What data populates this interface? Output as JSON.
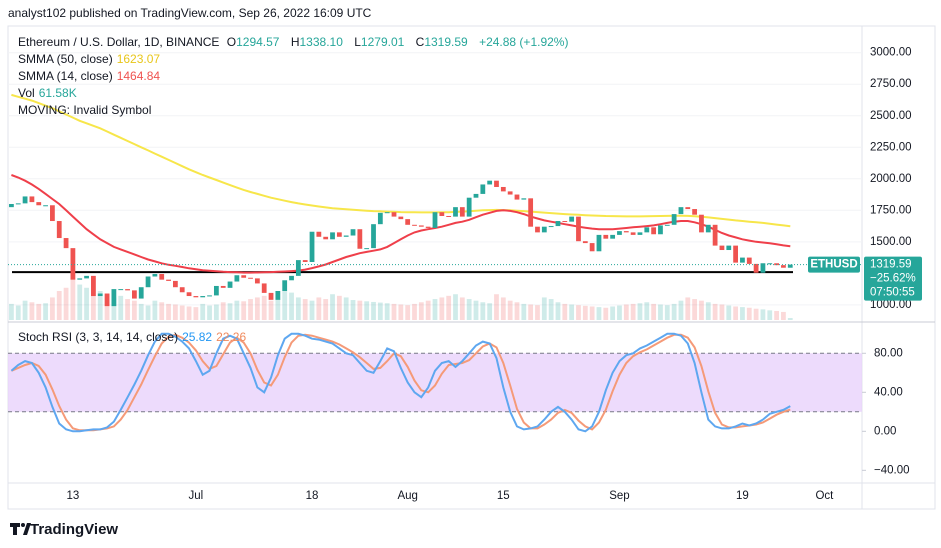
{
  "header": {
    "publisher": "analyst102 published on TradingView.com, Sep 26, 2022 16:09 UTC"
  },
  "footer": {
    "logo": "TradingView"
  },
  "chart_data": {
    "type": "candlestick",
    "symbol": "Ethereum / U.S. Dollar, 1D, BINANCE",
    "ohlc": [
      {
        "label": "O",
        "value": "1294.57"
      },
      {
        "label": "H",
        "value": "1338.10"
      },
      {
        "label": "L",
        "value": "1279.01"
      },
      {
        "label": "C",
        "value": "1319.59"
      }
    ],
    "change": "+24.88 (+1.92%)",
    "note": "MOVING: Invalid Symbol",
    "up_color": "#26a69a",
    "down_color": "#ef5350",
    "categories": [
      null,
      null,
      null,
      null,
      null,
      null,
      null,
      null,
      null,
      "13",
      null,
      null,
      null,
      null,
      null,
      null,
      null,
      null,
      null,
      null,
      null,
      null,
      null,
      null,
      null,
      null,
      null,
      "Jul",
      null,
      null,
      null,
      null,
      null,
      null,
      null,
      null,
      null,
      null,
      null,
      null,
      null,
      null,
      null,
      null,
      "18",
      null,
      null,
      null,
      null,
      null,
      null,
      null,
      null,
      null,
      null,
      null,
      null,
      null,
      "Aug",
      null,
      null,
      null,
      null,
      null,
      null,
      null,
      null,
      null,
      null,
      null,
      null,
      null,
      "15",
      null,
      null,
      null,
      null,
      null,
      null,
      null,
      null,
      null,
      null,
      null,
      null,
      null,
      null,
      null,
      null,
      "Sep",
      null,
      null,
      null,
      null,
      null,
      null,
      null,
      null,
      null,
      null,
      null,
      null,
      null,
      null,
      null,
      null,
      null,
      "19",
      null,
      null,
      null,
      null,
      null,
      null,
      null,
      null,
      null,
      null,
      null,
      "Oct",
      null,
      null,
      null,
      null,
      null
    ],
    "open": [
      1775,
      1800,
      1805,
      1860,
      1815,
      1790,
      1790,
      1665,
      1530,
      1450,
      1200,
      1210,
      1230,
      1070,
      1090,
      990,
      1125,
      1125,
      1115,
      1050,
      1140,
      1225,
      1245,
      1200,
      1190,
      1140,
      1100,
      1070,
      1060,
      1070,
      1075,
      1150,
      1135,
      1185,
      1235,
      1215,
      1210,
      1170,
      1095,
      1040,
      1110,
      1195,
      1230,
      1355,
      1340,
      1580,
      1540,
      1520,
      1575,
      1540,
      1550,
      1600,
      1445,
      1450,
      1640,
      1730,
      1735,
      1700,
      1680,
      1635,
      1630,
      1620,
      1610,
      1735,
      1705,
      1700,
      1775,
      1700,
      1850,
      1880,
      1955,
      1985,
      1935,
      1900,
      1875,
      1835,
      1845,
      1620,
      1575,
      1620,
      1625,
      1665,
      1660,
      1700,
      1505,
      1490,
      1425,
      1555,
      1525,
      1555,
      1585,
      1575,
      1555,
      1575,
      1615,
      1560,
      1630,
      1635,
      1720,
      1775,
      1760,
      1715,
      1575,
      1635,
      1470,
      1435,
      1470,
      1335,
      1375,
      1325,
      1255,
      1330,
      1330,
      1315,
      1294.57,
      null,
      null,
      null,
      null,
      null,
      null,
      null,
      null,
      null,
      null
    ],
    "close": [
      1800,
      1805,
      1860,
      1815,
      1790,
      1790,
      1665,
      1530,
      1450,
      1200,
      1210,
      1230,
      1070,
      1090,
      990,
      1125,
      1125,
      1115,
      1050,
      1140,
      1225,
      1245,
      1200,
      1190,
      1140,
      1100,
      1070,
      1060,
      1070,
      1075,
      1150,
      1135,
      1185,
      1235,
      1215,
      1210,
      1170,
      1095,
      1040,
      1110,
      1195,
      1230,
      1355,
      1340,
      1580,
      1540,
      1520,
      1575,
      1540,
      1550,
      1600,
      1445,
      1450,
      1640,
      1730,
      1735,
      1700,
      1680,
      1635,
      1630,
      1620,
      1610,
      1735,
      1705,
      1700,
      1775,
      1700,
      1850,
      1880,
      1955,
      1985,
      1935,
      1900,
      1875,
      1835,
      1845,
      1620,
      1575,
      1620,
      1625,
      1665,
      1660,
      1700,
      1505,
      1490,
      1425,
      1555,
      1525,
      1555,
      1585,
      1575,
      1555,
      1575,
      1615,
      1560,
      1630,
      1635,
      1720,
      1775,
      1760,
      1715,
      1575,
      1635,
      1470,
      1435,
      1470,
      1335,
      1375,
      1325,
      1255,
      1330,
      1330,
      1315,
      1294.57,
      1319.59,
      null,
      null,
      null,
      null,
      null,
      null,
      null,
      null,
      null,
      null
    ],
    "ylim": [
      880,
      3180
    ],
    "yticks": [
      {
        "value": 3000,
        "label": "3000.00"
      },
      {
        "value": 2750,
        "label": "2750.00"
      },
      {
        "value": 2500,
        "label": "2500.00"
      },
      {
        "value": 2250,
        "label": "2250.00"
      },
      {
        "value": 2000,
        "label": "2000.00"
      },
      {
        "value": 1750,
        "label": "1750.00"
      },
      {
        "value": 1500,
        "label": "1500.00"
      },
      {
        "value": 1000,
        "label": "1000.00"
      }
    ],
    "support_line": 1260,
    "last_price": {
      "symbol": "ETHUSD",
      "price": "1319.59",
      "change": "−25.62%",
      "countdown": "07:50:55"
    },
    "indicators": [
      {
        "name": "SMMA (50, close)",
        "last": "1623.07",
        "color": "#f7e64a",
        "values": [
          2665,
          2650,
          2635,
          2620,
          2600,
          2580,
          2560,
          2535,
          2510,
          2485,
          2460,
          2440,
          2420,
          2400,
          2375,
          2350,
          2325,
          2300,
          2275,
          2250,
          2225,
          2200,
          2175,
          2150,
          2125,
          2100,
          2075,
          2052,
          2030,
          2010,
          1990,
          1970,
          1950,
          1930,
          1912,
          1895,
          1880,
          1865,
          1850,
          1838,
          1826,
          1815,
          1805,
          1796,
          1788,
          1780,
          1773,
          1767,
          1762,
          1758,
          1754,
          1750,
          1747,
          1744,
          1742,
          1740,
          1738,
          1736,
          1735,
          1734,
          1733,
          1733,
          1733,
          1734,
          1735,
          1737,
          1740,
          1743,
          1746,
          1750,
          1752,
          1753,
          1752,
          1750,
          1747,
          1744,
          1740,
          1736,
          1732,
          1728,
          1724,
          1720,
          1717,
          1714,
          1711,
          1709,
          1707,
          1705,
          1704,
          1703,
          1702,
          1702,
          1702,
          1703,
          1704,
          1705,
          1706,
          1707,
          1707,
          1706,
          1703,
          1699,
          1694,
          1688,
          1682,
          1676,
          1670,
          1665,
          1660,
          1655,
          1650,
          1644,
          1637,
          1630,
          1623.07,
          null,
          null,
          null,
          null,
          null,
          null,
          null,
          null,
          null,
          null
        ]
      },
      {
        "name": "SMMA (14, close)",
        "last": "1464.84",
        "color": "#ef3f4a",
        "values": [
          2030,
          2010,
          1985,
          1955,
          1920,
          1880,
          1840,
          1800,
          1750,
          1700,
          1650,
          1600,
          1560,
          1520,
          1490,
          1460,
          1440,
          1420,
          1400,
          1380,
          1360,
          1345,
          1330,
          1318,
          1310,
          1300,
          1290,
          1282,
          1275,
          1270,
          1266,
          1262,
          1260,
          1258,
          1256,
          1256,
          1257,
          1258,
          1260,
          1262,
          1265,
          1268,
          1272,
          1280,
          1292,
          1305,
          1320,
          1340,
          1360,
          1380,
          1395,
          1410,
          1420,
          1430,
          1440,
          1460,
          1490,
          1520,
          1550,
          1575,
          1590,
          1600,
          1610,
          1620,
          1635,
          1650,
          1660,
          1675,
          1695,
          1715,
          1730,
          1745,
          1750,
          1745,
          1735,
          1720,
          1700,
          1685,
          1670,
          1660,
          1650,
          1640,
          1630,
          1620,
          1612,
          1605,
          1600,
          1600,
          1600,
          1605,
          1610,
          1615,
          1620,
          1625,
          1630,
          1640,
          1650,
          1660,
          1665,
          1665,
          1655,
          1640,
          1620,
          1595,
          1570,
          1550,
          1535,
          1520,
          1510,
          1500,
          1495,
          1488,
          1480,
          1472,
          1464.84,
          null,
          null,
          null,
          null,
          null,
          null,
          null,
          null,
          null,
          null
        ]
      }
    ],
    "volume": {
      "name": "Vol",
      "last": "61.58K",
      "ylim": [
        0,
        9000
      ],
      "values": [
        500,
        450,
        600,
        550,
        500,
        520,
        700,
        900,
        1000,
        1400,
        1100,
        1000,
        1300,
        900,
        800,
        700,
        750,
        650,
        600,
        500,
        450,
        600,
        550,
        500,
        480,
        450,
        420,
        400,
        500,
        450,
        480,
        550,
        520,
        600,
        580,
        650,
        700,
        750,
        600,
        650,
        900,
        850,
        700,
        650,
        600,
        700,
        650,
        800,
        750,
        700,
        620,
        600,
        580,
        560,
        540,
        520,
        500,
        480,
        460,
        500,
        550,
        600,
        650,
        700,
        750,
        800,
        700,
        650,
        600,
        550,
        520,
        800,
        700,
        600,
        550,
        500,
        480,
        460,
        700,
        650,
        550,
        500,
        480,
        460,
        440,
        420,
        400,
        380,
        420,
        450,
        480,
        500,
        520,
        550,
        500,
        480,
        460,
        500,
        600,
        700,
        650,
        600,
        550,
        500,
        480,
        450,
        420,
        400,
        380,
        350,
        330,
        300,
        280,
        250,
        61.58,
        null,
        null,
        null,
        null,
        null,
        null,
        null,
        null,
        null,
        null
      ]
    },
    "stoch_rsi": {
      "name": "Stoch RSI (3, 3, 14, 14, close)",
      "ylim": [
        -53,
        109
      ],
      "band": [
        20,
        80
      ],
      "band_color": "#e8d2fb",
      "yticks": [
        {
          "value": 80,
          "label": "80.00"
        },
        {
          "value": 40,
          "label": "40.00"
        },
        {
          "value": 0,
          "label": "0.00"
        },
        {
          "value": -40,
          "label": "−40.00"
        }
      ],
      "series": [
        {
          "last": "25.82",
          "color": "#5ea7f0",
          "values": [
            62,
            68,
            72,
            70,
            60,
            45,
            25,
            8,
            2,
            0,
            0,
            1,
            2,
            2,
            4,
            10,
            22,
            35,
            48,
            62,
            78,
            92,
            100,
            100,
            97,
            92,
            85,
            72,
            58,
            62,
            80,
            95,
            98,
            95,
            80,
            65,
            45,
            40,
            55,
            78,
            95,
            100,
            100,
            98,
            95,
            94,
            92,
            90,
            85,
            80,
            78,
            70,
            62,
            60,
            72,
            85,
            82,
            65,
            50,
            40,
            35,
            45,
            62,
            70,
            72,
            66,
            72,
            80,
            88,
            92,
            90,
            75,
            45,
            20,
            5,
            2,
            3,
            5,
            12,
            20,
            25,
            20,
            12,
            2,
            0,
            5,
            20,
            42,
            60,
            72,
            78,
            80,
            85,
            88,
            92,
            96,
            100,
            100,
            98,
            90,
            70,
            40,
            12,
            5,
            3,
            3,
            5,
            8,
            6,
            8,
            12,
            18,
            20,
            22,
            25.82,
            null,
            null,
            null,
            null,
            null,
            null,
            null,
            null,
            null,
            null
          ]
        },
        {
          "last": "22.26",
          "color": "#f59a78",
          "values": [
            62,
            65,
            68,
            70,
            67,
            58,
            43,
            26,
            12,
            3,
            1,
            1,
            1,
            2,
            3,
            5,
            12,
            22,
            35,
            48,
            63,
            77,
            90,
            97,
            99,
            96,
            91,
            83,
            72,
            64,
            67,
            79,
            91,
            96,
            91,
            80,
            63,
            50,
            47,
            58,
            76,
            91,
            98,
            99,
            98,
            96,
            94,
            92,
            89,
            85,
            81,
            76,
            70,
            64,
            65,
            72,
            80,
            77,
            66,
            52,
            42,
            40,
            47,
            59,
            68,
            69,
            70,
            73,
            80,
            87,
            90,
            86,
            70,
            47,
            23,
            9,
            3,
            3,
            7,
            12,
            19,
            22,
            19,
            11,
            5,
            2,
            9,
            22,
            41,
            58,
            70,
            77,
            81,
            84,
            88,
            92,
            96,
            99,
            99,
            96,
            86,
            67,
            41,
            19,
            7,
            4,
            4,
            5,
            6,
            7,
            9,
            13,
            17,
            20,
            22.26,
            null,
            null,
            null,
            null,
            null,
            null,
            null,
            null,
            null,
            null
          ]
        }
      ]
    }
  }
}
